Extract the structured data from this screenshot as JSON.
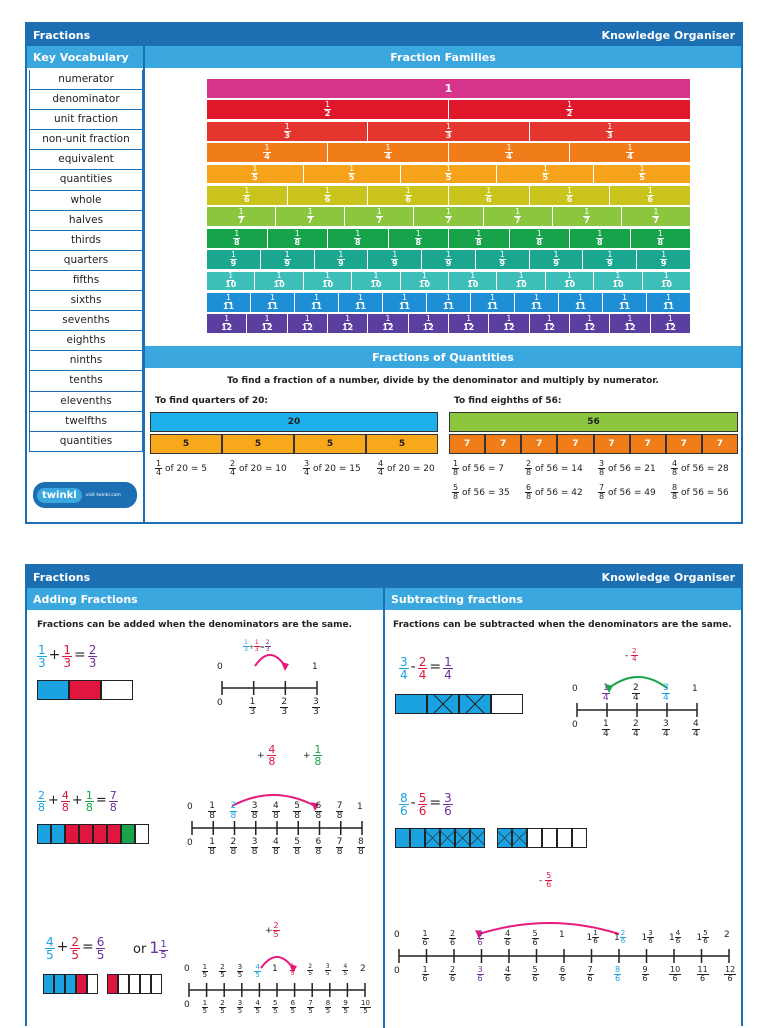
{
  "top": {
    "title": "Fractions",
    "right_title": "Knowledge Organiser",
    "vocab_header": "Key Vocabulary",
    "vocab": [
      "numerator",
      "denominator",
      "unit fraction",
      "non-unit fraction",
      "equivalent",
      "quantities",
      "whole",
      "halves",
      "thirds",
      "quarters",
      "fifths",
      "sixths",
      "sevenths",
      "eighths",
      "ninths",
      "tenths",
      "elevenths",
      "twelfths",
      "quantities"
    ],
    "families_header": "Fraction Families",
    "wall_whole": "1",
    "wall_colors": [
      "#d6338a",
      "#e0162b",
      "#e5352f",
      "#f07c1a",
      "#f6a21b",
      "#c9c31c",
      "#8cc63f",
      "#17a34a",
      "#1aa68f",
      "#3bbfb8",
      "#1e8fd6",
      "#5b3fa0"
    ],
    "quantities_header": "Fractions of Quantities",
    "instruction": "To find a fraction of a number, divide by the denominator and multiply by numerator.",
    "quarters_title": "To find quarters of 20:",
    "quarters_whole": "20",
    "quarters_part": "5",
    "quarters_results": [
      "of 20 = 5",
      "of 20 = 10",
      "of 20 = 15",
      "of 20 = 20"
    ],
    "eighths_title": "To find eighths of 56:",
    "eighths_whole": "56",
    "eighths_part": "7",
    "eighths_results": [
      "of 56 = 7",
      "of 56 = 14",
      "of 56 = 21",
      "of 56 = 28",
      "of 56 = 35",
      "of 56 = 42",
      "of 56 = 49",
      "of 56 = 56"
    ],
    "logo": "twinkl",
    "logo_url": "visit twinkl.com"
  },
  "bottom": {
    "title": "Fractions",
    "right_title": "Knowledge Organiser",
    "add_header": "Adding Fractions",
    "sub_header": "Subtracting fractions",
    "add_rule": "Fractions can be added when the denominators are the same.",
    "sub_rule": "Fractions can be subtracted when the denominators are the same.",
    "or": "or",
    "colors": {
      "blue": "#1aa3e0",
      "red": "#e0163e",
      "purple": "#6b2fa0",
      "green": "#1aa34a",
      "pink": "#e6197f"
    }
  }
}
